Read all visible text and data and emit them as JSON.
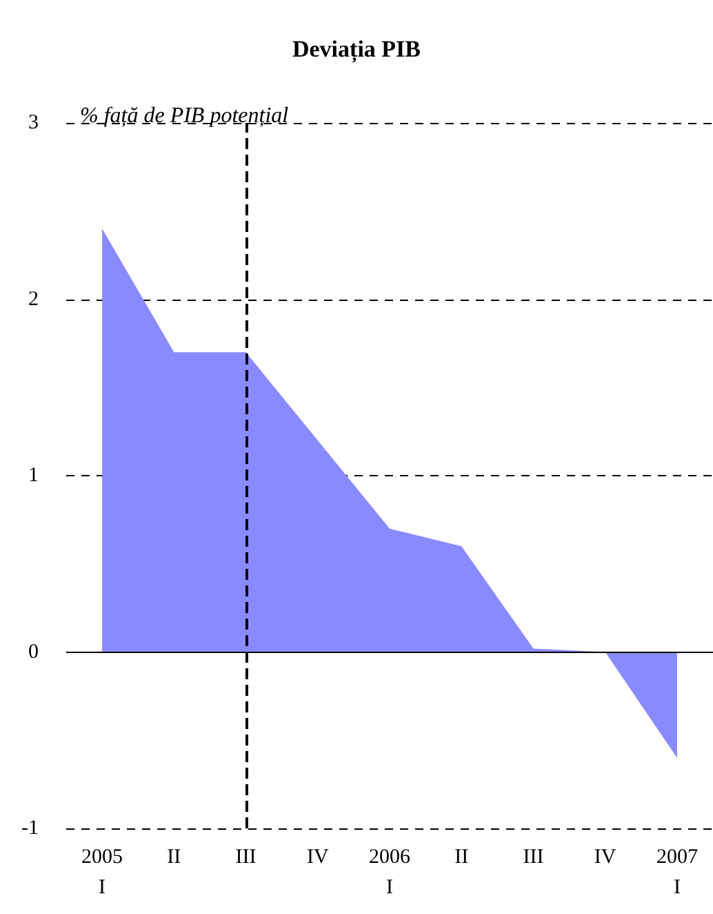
{
  "chart_data": {
    "type": "area",
    "title": "Deviația PIB",
    "ylabel": "% față de PIB potențial",
    "categories": [
      "2005\nI",
      "II",
      "III",
      "IV",
      "2006\nI",
      "II",
      "III",
      "IV",
      "2007\nI"
    ],
    "values": [
      2.4,
      1.7,
      1.7,
      1.2,
      0.7,
      0.6,
      0.02,
      0.0,
      -0.6
    ],
    "color": "#8a8aff",
    "ylim": [
      -1,
      3
    ],
    "yticks": [
      -1,
      0,
      1,
      2,
      3
    ],
    "grid": "y",
    "ref_lines": [
      {
        "axis": "x",
        "value": "III",
        "color": "#000000",
        "line_style": "dashed"
      }
    ]
  }
}
